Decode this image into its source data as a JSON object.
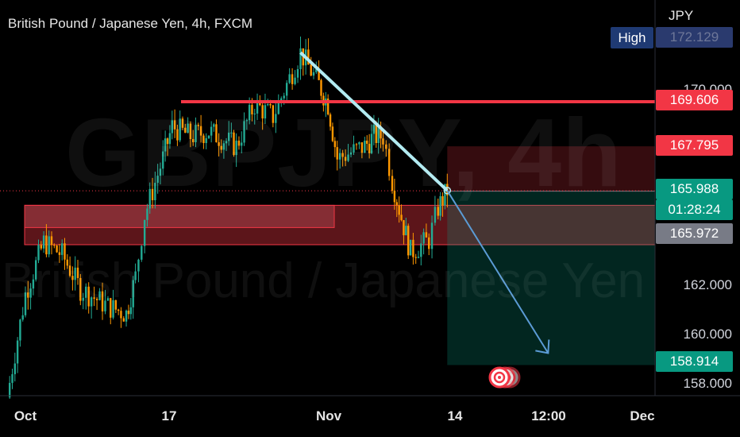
{
  "title": "British Pound / Japanese Yen, 4h, FXCM",
  "watermark": {
    "symbol": "GBPJPY, 4h",
    "name": "British Pound / Japanese Yen"
  },
  "currency": "JPY",
  "high_label": "High",
  "price_tags": {
    "high": {
      "text": "172.129",
      "color": "#2a3a6e"
    },
    "resistance": {
      "text": "169.606",
      "color": "#f23645"
    },
    "stop": {
      "text": "167.795",
      "color": "#f23645"
    },
    "last": {
      "text": "165.988",
      "color": "#089981"
    },
    "countdown": {
      "text": "01:28:24",
      "color": "#089981"
    },
    "entry": {
      "text": "165.972",
      "color": "#787b86"
    },
    "target": {
      "text": "158.914",
      "color": "#089981"
    }
  },
  "y_ticks": [
    "170.000",
    "162.000",
    "160.000",
    "158.000"
  ],
  "x_ticks": [
    "Oct",
    "17",
    "Nov",
    "14",
    "12:00",
    "Dec"
  ],
  "chart_data": {
    "type": "candlestick",
    "series_name": "GBPJPY 4h",
    "ylim": [
      157.2,
      173.5
    ],
    "x_ticks": [
      "Oct",
      "17",
      "Nov",
      "14",
      "12:00",
      "Dec"
    ],
    "grid": false,
    "close_path": [
      {
        "x": "Sep 28",
        "y": 157.6
      },
      {
        "x": "Oct 1",
        "y": 161.8
      },
      {
        "x": "Oct 3",
        "y": 163.9
      },
      {
        "x": "Oct 5",
        "y": 163.4
      },
      {
        "x": "Oct 7",
        "y": 162.0
      },
      {
        "x": "Oct 10",
        "y": 161.3
      },
      {
        "x": "Oct 12",
        "y": 161.0
      },
      {
        "x": "Oct 13",
        "y": 162.5
      },
      {
        "x": "Oct 14",
        "y": 165.0
      },
      {
        "x": "Oct 16",
        "y": 167.3
      },
      {
        "x": "Oct 17",
        "y": 168.6
      },
      {
        "x": "Oct 19",
        "y": 168.2
      },
      {
        "x": "Oct 21",
        "y": 168.4
      },
      {
        "x": "Oct 24",
        "y": 167.8
      },
      {
        "x": "Oct 26",
        "y": 169.5
      },
      {
        "x": "Oct 28",
        "y": 169.0
      },
      {
        "x": "Oct 31",
        "y": 171.6
      },
      {
        "x": "Nov 2",
        "y": 170.3
      },
      {
        "x": "Nov 3",
        "y": 169.5
      },
      {
        "x": "Nov 4",
        "y": 167.3
      },
      {
        "x": "Nov 7",
        "y": 167.8
      },
      {
        "x": "Nov 8",
        "y": 168.2
      },
      {
        "x": "Nov 9",
        "y": 168.2
      },
      {
        "x": "Nov 10",
        "y": 166.4
      },
      {
        "x": "Nov 11",
        "y": 164.9
      },
      {
        "x": "Nov 12",
        "y": 163.5
      },
      {
        "x": "Nov 14",
        "y": 164.0
      },
      {
        "x": "Nov 15",
        "y": 165.3
      },
      {
        "x": "Nov 16",
        "y": 165.99
      }
    ],
    "annotations": {
      "resistance_level": 169.606,
      "demand_zone": [
        163.8,
        165.4
      ],
      "short_position": {
        "entry": 165.972,
        "stop": 167.795,
        "target": 158.914
      },
      "trendline": [
        {
          "x": "Oct 31",
          "y": 171.6
        },
        {
          "x": "Nov 16",
          "y": 166.0
        }
      ],
      "projection": [
        {
          "x": "Nov 16",
          "y": 166.0
        },
        {
          "x": "Nov 27",
          "y": 159.4
        }
      ]
    }
  }
}
